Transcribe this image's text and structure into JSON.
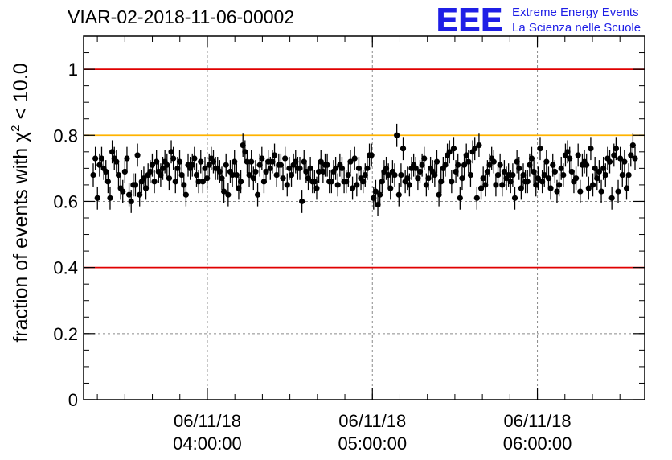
{
  "title": "VIAR-02-2018-11-06-00002",
  "logo": {
    "mark": "EEE",
    "line1": "Extreme Energy Events",
    "line2": "La Scienza nelle Scuole"
  },
  "colors": {
    "threshold_red": "#e00000",
    "threshold_orange": "#ffb300",
    "markers": "#000000",
    "logo_blue": "#1f1fe6",
    "grid": "#888888"
  },
  "chart_data": {
    "type": "scatter",
    "ylabel_prefix": "fraction of events with ",
    "ylabel_symbol": "χ",
    "ylabel_exp": "2",
    "ylabel_suffix": " < 10.0",
    "ylim": [
      0,
      1.1
    ],
    "y_ticks": [
      "0",
      "0.2",
      "0.4",
      "0.6",
      "0.8",
      "1"
    ],
    "x_ticks": [
      {
        "date": "06/11/18",
        "time": "04:00:00"
      },
      {
        "date": "06/11/18",
        "time": "05:00:00"
      },
      {
        "date": "06/11/18",
        "time": "06:00:00"
      }
    ],
    "x_start": "06/11/18 03:15:00",
    "x_end": "06/11/18 06:39:00",
    "grid": true,
    "reference_lines": [
      {
        "y": 1.0,
        "color": "#e00000"
      },
      {
        "y": 0.8,
        "color": "#ffb300"
      },
      {
        "y": 0.4,
        "color": "#e00000"
      }
    ],
    "error": 0.035,
    "values": [
      0.68,
      0.73,
      0.61,
      0.71,
      0.73,
      0.7,
      0.69,
      0.66,
      0.61,
      0.75,
      0.73,
      0.72,
      0.68,
      0.64,
      0.63,
      0.69,
      0.73,
      0.62,
      0.6,
      0.65,
      0.65,
      0.74,
      0.62,
      0.66,
      0.67,
      0.64,
      0.68,
      0.69,
      0.71,
      0.66,
      0.72,
      0.69,
      0.68,
      0.7,
      0.72,
      0.71,
      0.67,
      0.75,
      0.73,
      0.66,
      0.7,
      0.72,
      0.68,
      0.65,
      0.62,
      0.71,
      0.7,
      0.71,
      0.73,
      0.68,
      0.66,
      0.72,
      0.66,
      0.7,
      0.67,
      0.71,
      0.73,
      0.72,
      0.7,
      0.7,
      0.69,
      0.67,
      0.63,
      0.71,
      0.62,
      0.69,
      0.68,
      0.72,
      0.68,
      0.64,
      0.66,
      0.77,
      0.75,
      0.72,
      0.68,
      0.72,
      0.67,
      0.69,
      0.62,
      0.71,
      0.73,
      0.66,
      0.69,
      0.72,
      0.7,
      0.72,
      0.74,
      0.68,
      0.71,
      0.71,
      0.67,
      0.73,
      0.65,
      0.7,
      0.68,
      0.71,
      0.72,
      0.7,
      0.7,
      0.6,
      0.72,
      0.69,
      0.67,
      0.7,
      0.66,
      0.66,
      0.64,
      0.69,
      0.72,
      0.69,
      0.71,
      0.71,
      0.66,
      0.66,
      0.69,
      0.7,
      0.65,
      0.71,
      0.7,
      0.66,
      0.66,
      0.68,
      0.72,
      0.64,
      0.73,
      0.65,
      0.7,
      0.67,
      0.66,
      0.68,
      0.7,
      0.74,
      0.74,
      0.61,
      0.63,
      0.59,
      0.62,
      0.66,
      0.69,
      0.7,
      0.68,
      0.64,
      0.69,
      0.68,
      0.8,
      0.62,
      0.68,
      0.76,
      0.66,
      0.67,
      0.65,
      0.7,
      0.71,
      0.7,
      0.67,
      0.69,
      0.71,
      0.73,
      0.65,
      0.67,
      0.7,
      0.69,
      0.68,
      0.72,
      0.62,
      0.66,
      0.7,
      0.71,
      0.74,
      0.75,
      0.66,
      0.76,
      0.69,
      0.71,
      0.61,
      0.67,
      0.71,
      0.74,
      0.72,
      0.68,
      0.75,
      0.76,
      0.61,
      0.77,
      0.64,
      0.67,
      0.65,
      0.69,
      0.71,
      0.73,
      0.72,
      0.65,
      0.68,
      0.71,
      0.65,
      0.69,
      0.67,
      0.68,
      0.66,
      0.68,
      0.61,
      0.72,
      0.7,
      0.64,
      0.68,
      0.66,
      0.66,
      0.71,
      0.73,
      0.69,
      0.65,
      0.67,
      0.76,
      0.66,
      0.68,
      0.72,
      0.67,
      0.64,
      0.71,
      0.69,
      0.63,
      0.65,
      0.7,
      0.68,
      0.74,
      0.75,
      0.73,
      0.69,
      0.66,
      0.67,
      0.74,
      0.63,
      0.71,
      0.72,
      0.71,
      0.64,
      0.76,
      0.65,
      0.7,
      0.67,
      0.69,
      0.63,
      0.7,
      0.68,
      0.73,
      0.72,
      0.61,
      0.74,
      0.76,
      0.63,
      0.73,
      0.68,
      0.72,
      0.64,
      0.68,
      0.74,
      0.77,
      0.73
    ]
  }
}
